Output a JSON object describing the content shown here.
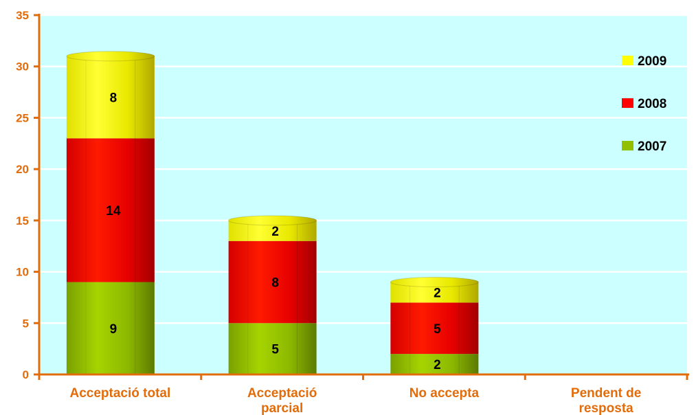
{
  "chart_data": {
    "type": "bar",
    "stacked": true,
    "categories": [
      "Acceptació total",
      "Acceptació parcial",
      "No accepta",
      "Pendent de resposta"
    ],
    "series": [
      {
        "name": "2007",
        "values": [
          9,
          5,
          2,
          0
        ],
        "color": "#92c000"
      },
      {
        "name": "2008",
        "values": [
          14,
          8,
          5,
          0
        ],
        "color": "#ff0000"
      },
      {
        "name": "2009",
        "values": [
          8,
          2,
          2,
          0
        ],
        "color": "#ffff00"
      }
    ],
    "ylim": [
      0,
      35
    ],
    "yticks": [
      0,
      5,
      10,
      15,
      20,
      25,
      30,
      35
    ],
    "grid": true,
    "legend_position": "right",
    "colors": {
      "plot_background": "#ccffff",
      "axis": "#e36c0a",
      "tick_text": "#e36c0a",
      "gridline": "#ffffff"
    }
  }
}
